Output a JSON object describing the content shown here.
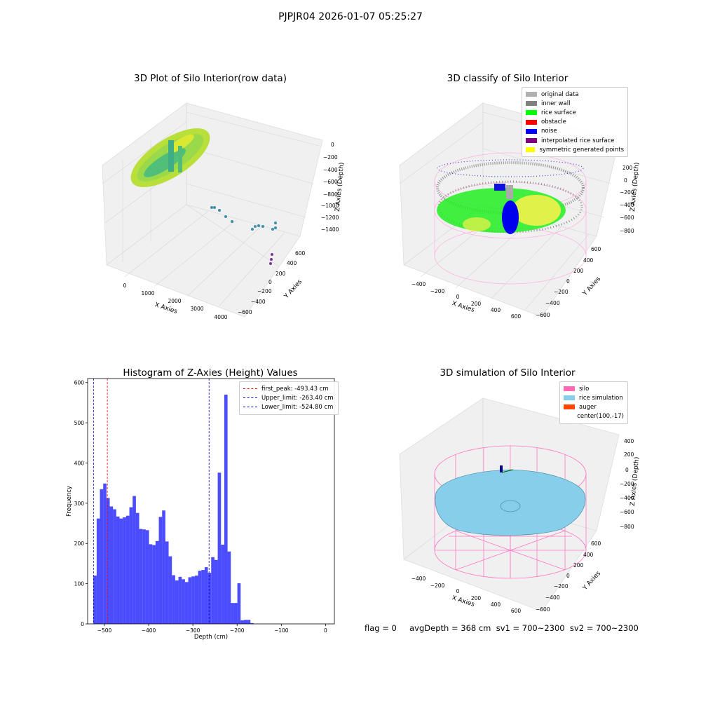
{
  "suptitle": "PJPJR04 2026-01-07 05:25:27",
  "footer_text": "flag = 0     avgDepth = 368 cm  sv1 = 700~2300  sv2 = 700~2300",
  "panels": {
    "raw": {
      "title": "3D Plot of Silo Interior(row data)",
      "xlabel": "X Axies",
      "ylabel": "Y Axies",
      "zlabel": "Z Axies (Depth)",
      "xticks": [
        "0",
        "1000",
        "2000",
        "3000",
        "4000"
      ],
      "yticks": [
        "600",
        "400",
        "200",
        "0",
        "−200",
        "−400",
        "−600"
      ],
      "zticks": [
        "0",
        "−200",
        "−400",
        "−600",
        "−800",
        "−1000",
        "−1200",
        "−1400"
      ]
    },
    "classify": {
      "title": "3D classify of Silo Interior",
      "xlabel": "X Axies",
      "ylabel": "Y Axies",
      "zlabel": "Z Axies (Depth)",
      "xticks": [
        "−400",
        "−200",
        "0",
        "200",
        "400",
        "600"
      ],
      "yticks": [
        "600",
        "400",
        "200",
        "0",
        "−200",
        "−400",
        "−600"
      ],
      "zticks": [
        "200",
        "0",
        "−200",
        "−400",
        "−600",
        "−800"
      ],
      "legend": [
        {
          "label": "original data",
          "color": "#b0b0b0"
        },
        {
          "label": "inner wall",
          "color": "#808080"
        },
        {
          "label": "rice surface",
          "color": "#00ff00"
        },
        {
          "label": "obstacle",
          "color": "#ff0000"
        },
        {
          "label": "noise",
          "color": "#0000ff"
        },
        {
          "label": "interpolated rice surface",
          "color": "#800080"
        },
        {
          "label": "symmetric generated points",
          "color": "#ffff00"
        }
      ]
    },
    "simulation": {
      "title": "3D simulation of Silo Interior",
      "xlabel": "X Axies",
      "ylabel": "Y Axies",
      "zlabel": "Z Axies (Depth)",
      "xticks": [
        "−400",
        "−200",
        "0",
        "200",
        "400",
        "600"
      ],
      "yticks": [
        "600",
        "400",
        "200",
        "0",
        "−200",
        "−400",
        "−600"
      ],
      "zticks": [
        "400",
        "200",
        "0",
        "−200",
        "−400",
        "−600",
        "−800"
      ],
      "legend": [
        {
          "label": "silo",
          "color": "#ff69b4"
        },
        {
          "label": "rice simulation",
          "color": "#87ceeb"
        },
        {
          "label": "auger",
          "color": "#ff4500"
        },
        {
          "label": "center(100,-17)",
          "color": ""
        }
      ]
    }
  },
  "chart_data": {
    "type": "bar",
    "title": "Histogram of Z-Axies (Height) Values",
    "xlabel": "Depth (cm)",
    "ylabel": "Frequency",
    "xlim": [
      -538,
      20
    ],
    "ylim": [
      0,
      610
    ],
    "xticks": [
      -500,
      -400,
      -300,
      -200,
      -100,
      0
    ],
    "yticks": [
      0,
      100,
      200,
      300,
      400,
      500,
      600
    ],
    "bar_color": "#0000ff",
    "bin_start": -525,
    "bin_width": 7.4,
    "values": [
      120,
      262,
      335,
      349,
      313,
      292,
      285,
      267,
      262,
      265,
      269,
      290,
      318,
      276,
      236,
      235,
      233,
      198,
      196,
      206,
      266,
      282,
      205,
      168,
      121,
      108,
      117,
      111,
      104,
      116,
      118,
      120,
      132,
      134,
      141,
      127,
      166,
      159,
      376,
      197,
      570,
      180,
      52,
      52,
      101,
      9,
      10,
      10,
      2
    ],
    "lines": [
      {
        "label": "first_peak: -493.43 cm",
        "x": -493.43,
        "color": "#ff0000"
      },
      {
        "label": "Upper_limit: -263.40 cm",
        "x": -263.4,
        "color": "#0000cc"
      },
      {
        "label": "Lower_limit: -524.80 cm",
        "x": -524.8,
        "color": "#0000cc"
      }
    ]
  }
}
